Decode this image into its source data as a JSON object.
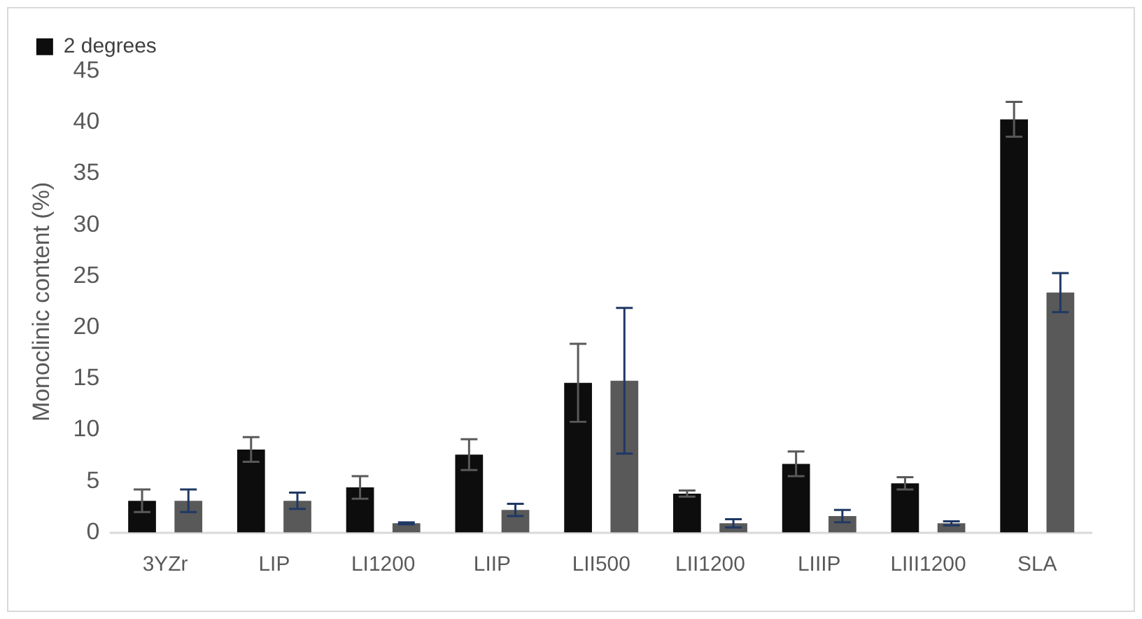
{
  "chart_data": {
    "type": "bar",
    "ylabel": "Monoclinic content (%)",
    "categories": [
      "3YZr",
      "LIP",
      "LI1200",
      "LIIP",
      "LII500",
      "LII1200",
      "LIIIP",
      "LIII1200",
      "SLA"
    ],
    "series": [
      {
        "name": "2 degrees",
        "color": "#0d0d0d",
        "values": [
          3.1,
          8.1,
          4.4,
          7.6,
          14.6,
          3.8,
          6.7,
          4.8,
          40.3
        ],
        "errors": [
          1.1,
          1.2,
          1.1,
          1.5,
          3.8,
          0.3,
          1.2,
          0.6,
          1.7
        ]
      },
      {
        "color": "#595959",
        "values": [
          3.1,
          3.1,
          0.9,
          2.2,
          14.8,
          0.9,
          1.6,
          0.9,
          23.4
        ],
        "errors": [
          1.1,
          0.8,
          0.1,
          0.6,
          7.1,
          0.4,
          0.6,
          0.2,
          1.9
        ]
      }
    ],
    "ylim": [
      0,
      45
    ],
    "yticks": [
      0,
      5,
      10,
      15,
      20,
      25,
      30,
      35,
      40,
      45
    ],
    "grid": false,
    "legend": "top left"
  }
}
